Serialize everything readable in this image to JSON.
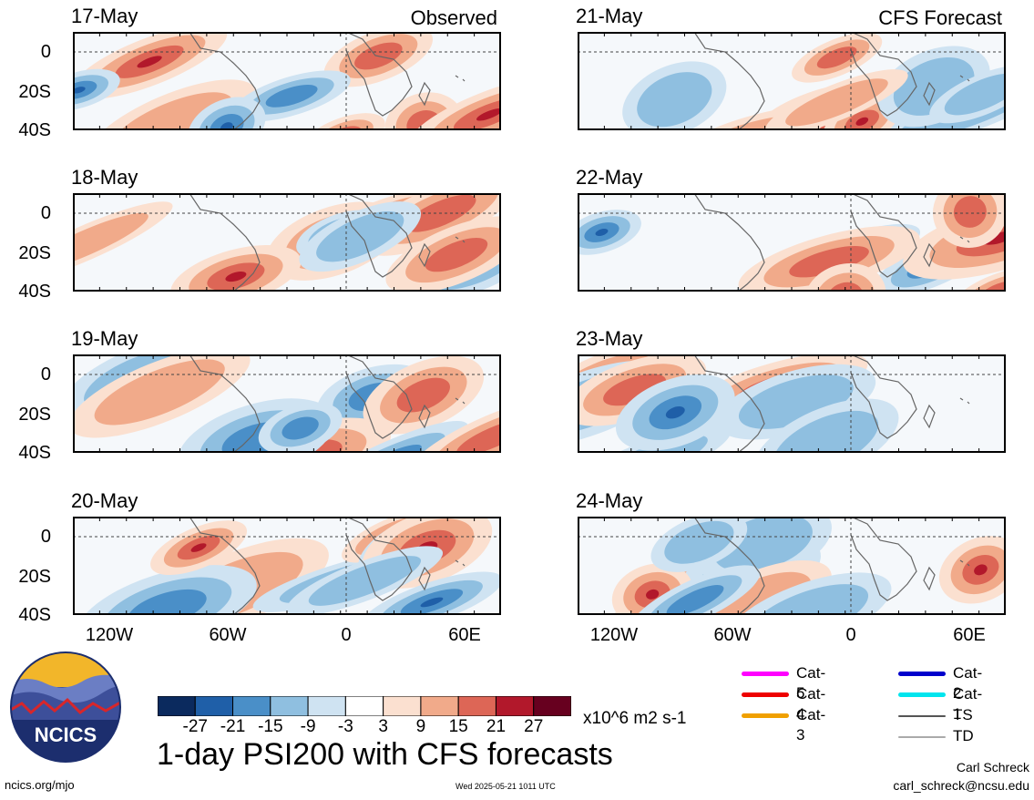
{
  "panels": [
    {
      "date": "17-May",
      "title": "Observed"
    },
    {
      "date": "18-May",
      "title": ""
    },
    {
      "date": "19-May",
      "title": ""
    },
    {
      "date": "20-May",
      "title": ""
    },
    {
      "date": "21-May",
      "title": "CFS Forecast"
    },
    {
      "date": "22-May",
      "title": ""
    },
    {
      "date": "23-May",
      "title": ""
    },
    {
      "date": "24-May",
      "title": ""
    }
  ],
  "lat_labels": [
    "0",
    "20S",
    "40S"
  ],
  "lon_labels": [
    "120W",
    "60W",
    "0",
    "60E"
  ],
  "colorbar": {
    "colors": [
      "#0b2a5e",
      "#1f5fa8",
      "#4a8fc8",
      "#8fbfe0",
      "#cfe3f2",
      "#ffffff",
      "#fbe0d0",
      "#f1aa8a",
      "#dd6656",
      "#b2182b",
      "#67001f"
    ],
    "labels": [
      "-27",
      "-21",
      "-15",
      "-9",
      "-3",
      "3",
      "9",
      "15",
      "21",
      "27"
    ],
    "units": "x10^6 m2 s-1"
  },
  "legend": [
    {
      "label": "Cat-5",
      "color": "#ff00ff"
    },
    {
      "label": "Cat-4",
      "color": "#ee0000"
    },
    {
      "label": "Cat-3",
      "color": "#f0a000"
    },
    {
      "label": "Cat-2",
      "color": "#0000cc"
    },
    {
      "label": "Cat-1",
      "color": "#00e5ee"
    },
    {
      "label": "TS",
      "color": "#555555"
    },
    {
      "label": "TD",
      "color": "#aaaaaa"
    }
  ],
  "main_title": "1-day PSI200 with CFS forecasts",
  "footer": {
    "url": "ncics.org/mjo",
    "timestamp": "Wed 2025-05-21 1011 UTC",
    "author": "Carl Schreck",
    "email": "carl_schreck@ncsu.edu"
  },
  "logo_text": "NCICS"
}
